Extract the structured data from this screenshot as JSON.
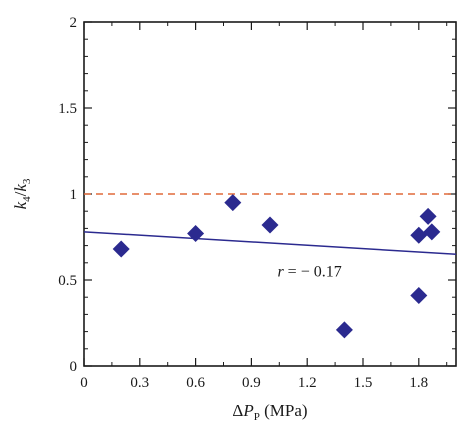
{
  "chart_data": {
    "type": "scatter",
    "x": [
      0.2,
      0.6,
      0.8,
      1.0,
      1.4,
      1.8,
      1.8,
      1.85,
      1.87
    ],
    "y": [
      0.68,
      0.77,
      0.95,
      0.82,
      0.21,
      0.41,
      0.76,
      0.87,
      0.78
    ],
    "xlim": [
      0,
      2.0
    ],
    "ylim": [
      0,
      2
    ],
    "xticks": [
      "0",
      "0.3",
      "0.6",
      "0.9",
      "1.2",
      "1.5",
      "1.8"
    ],
    "xtick_values": [
      0,
      0.3,
      0.6,
      0.9,
      1.2,
      1.5,
      1.8
    ],
    "yticks": [
      "0",
      "0.5",
      "1",
      "1.5",
      "2"
    ],
    "ytick_values": [
      0,
      0.5,
      1,
      1.5,
      2
    ],
    "ylabel": {
      "k1": "k",
      "s1": "4",
      "slash": "/",
      "k2": "k",
      "s2": "3"
    },
    "xlabel": {
      "delta": "Δ",
      "p": "P",
      "sub": "P",
      "unit": " (MPa)"
    },
    "reference_line": {
      "y": 1,
      "style": "dashed",
      "color": "#e06a3a"
    },
    "fit_line": {
      "x": [
        0,
        2.0
      ],
      "y": [
        0.78,
        0.65
      ],
      "color": "#2b2a8f"
    },
    "annotation": {
      "var": "r",
      "text": " = − 0.17",
      "x": 1.04,
      "y": 0.52
    },
    "marker_color": "#2b2a8f",
    "grid": false
  }
}
